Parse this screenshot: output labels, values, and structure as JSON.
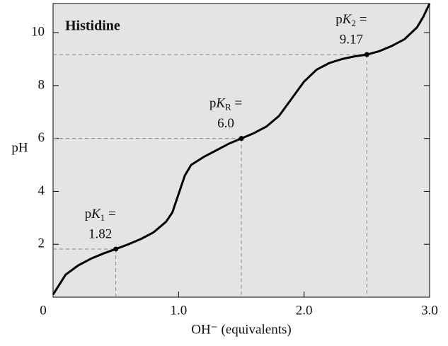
{
  "chart_data": {
    "type": "line",
    "title": "Histidine",
    "x_label": "OH⁻ (equivalents)",
    "y_label": "pH",
    "xlim": [
      0,
      3
    ],
    "ylim": [
      0,
      11.1
    ],
    "xticks": [
      0,
      {
        "value": 1,
        "label": "1.0"
      },
      {
        "value": 2,
        "label": "2.0"
      },
      {
        "value": 3,
        "label": "3.0"
      }
    ],
    "yticks": [
      2,
      4,
      6,
      8,
      10
    ],
    "background": "#e4e4e4",
    "x": [
      0,
      0.1,
      0.2,
      0.3,
      0.4,
      0.5,
      0.6,
      0.7,
      0.8,
      0.9,
      0.95,
      1.0,
      1.05,
      1.1,
      1.2,
      1.3,
      1.4,
      1.5,
      1.6,
      1.7,
      1.8,
      1.9,
      2.0,
      2.1,
      2.2,
      2.3,
      2.4,
      2.5,
      2.6,
      2.7,
      2.8,
      2.9,
      2.95,
      3.0
    ],
    "series": [
      {
        "color": "#000000",
        "values": [
          0.1,
          0.85,
          1.2,
          1.45,
          1.65,
          1.82,
          2.0,
          2.2,
          2.45,
          2.85,
          3.2,
          3.9,
          4.6,
          5.0,
          5.3,
          5.55,
          5.8,
          6.0,
          6.2,
          6.45,
          6.85,
          7.5,
          8.15,
          8.6,
          8.85,
          9.0,
          9.1,
          9.17,
          9.3,
          9.5,
          9.75,
          10.2,
          10.6,
          11.1
        ]
      }
    ],
    "annotations": [
      {
        "prefix": "p",
        "symbol": "K",
        "subscript": "1",
        "suffix": " =",
        "x": 0.5,
        "y": 1.82
      },
      {
        "prefix": "p",
        "symbol": "K",
        "subscript": "R",
        "suffix": " =",
        "x": 1.5,
        "y": 6,
        "value_label": "6.0"
      },
      {
        "prefix": "p",
        "symbol": "K",
        "subscript": "2",
        "suffix": " =",
        "x": 2.5,
        "y": 9.17
      }
    ]
  }
}
